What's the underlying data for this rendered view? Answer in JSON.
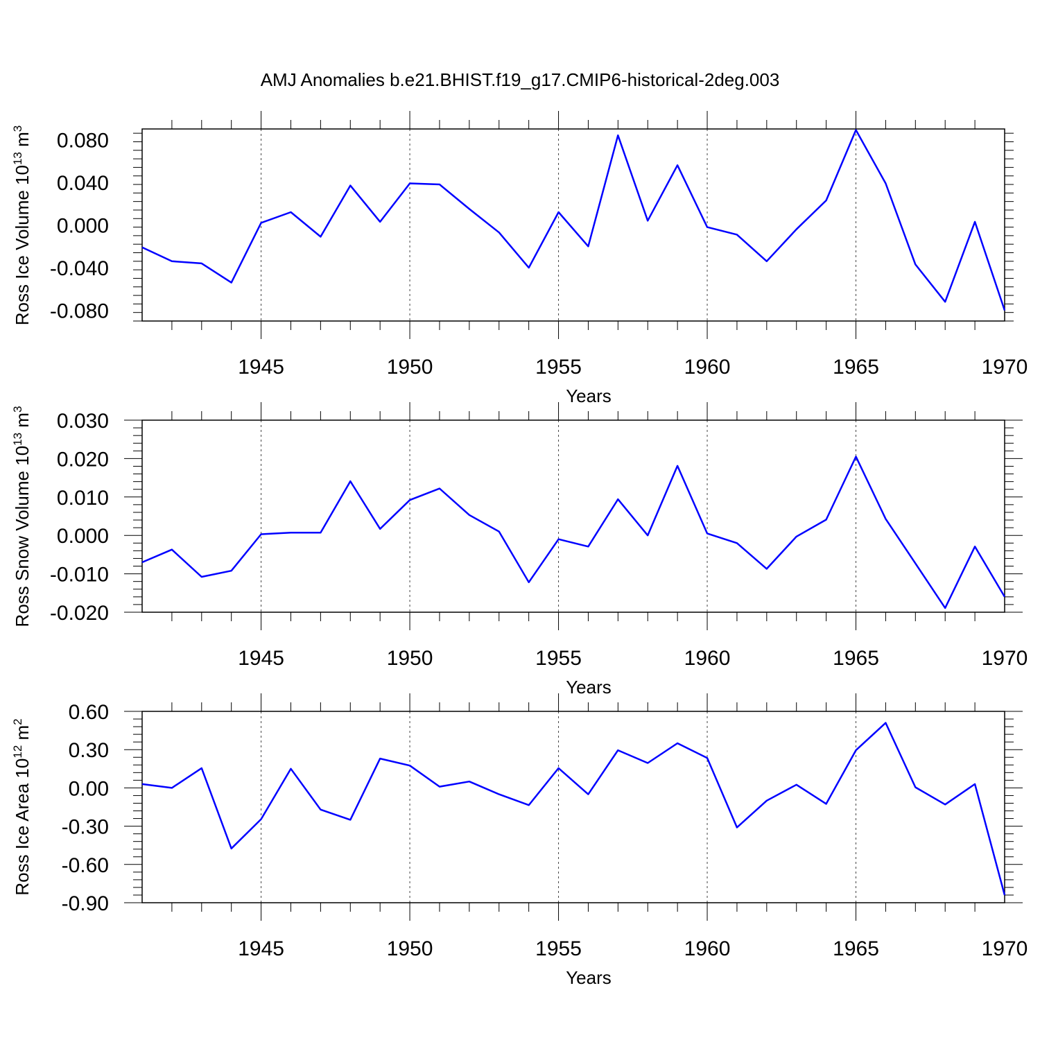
{
  "title": "AMJ Anomalies b.e21.BHIST.f19_g17.CMIP6-historical-2deg.003",
  "line_color": "#0000ff",
  "chart_data": [
    {
      "type": "line",
      "ylabel": "Ross Ice Volume 10",
      "ylabel_exp": "13",
      "ylabel_unit": " m",
      "ylabel_unit_exp": "3",
      "xlabel": "Years",
      "xlim": [
        1941,
        1970
      ],
      "ylim": [
        -0.09,
        0.09
      ],
      "yticks": [
        -0.08,
        -0.04,
        0.0,
        0.04,
        0.08
      ],
      "ytick_labels": [
        "-0.080",
        "-0.040",
        "0.000",
        "0.040",
        "0.080"
      ],
      "xticks": [
        1945,
        1950,
        1955,
        1960,
        1965,
        1970
      ],
      "xtick_labels": [
        "1945",
        "1950",
        "1955",
        "1960",
        "1965",
        "1970"
      ],
      "grid": "vertical dashed at labeled years",
      "x": [
        1941,
        1942,
        1943,
        1944,
        1945,
        1946,
        1947,
        1948,
        1949,
        1950,
        1951,
        1952,
        1953,
        1954,
        1955,
        1956,
        1957,
        1958,
        1959,
        1960,
        1961,
        1962,
        1963,
        1964,
        1965,
        1966,
        1967,
        1968,
        1969,
        1970
      ],
      "values": [
        -0.021,
        -0.034,
        -0.036,
        -0.054,
        0.002,
        0.012,
        -0.011,
        0.037,
        0.003,
        0.039,
        0.038,
        0.015,
        -0.007,
        -0.04,
        0.012,
        -0.02,
        0.084,
        0.004,
        0.056,
        -0.002,
        -0.009,
        -0.034,
        -0.004,
        0.023,
        0.089,
        0.039,
        -0.037,
        -0.072,
        0.003,
        -0.08
      ]
    },
    {
      "type": "line",
      "ylabel": "Ross Snow Volume 10",
      "ylabel_exp": "13",
      "ylabel_unit": " m",
      "ylabel_unit_exp": "3",
      "xlabel": "Years",
      "xlim": [
        1941,
        1970
      ],
      "ylim": [
        -0.02,
        0.03
      ],
      "yticks": [
        -0.02,
        -0.01,
        0.0,
        0.01,
        0.02,
        0.03
      ],
      "ytick_labels": [
        "-0.020",
        "-0.010",
        "0.000",
        "0.010",
        "0.020",
        "0.030"
      ],
      "xticks": [
        1945,
        1950,
        1955,
        1960,
        1965,
        1970
      ],
      "xtick_labels": [
        "1945",
        "1950",
        "1955",
        "1960",
        "1965",
        "1970"
      ],
      "grid": "vertical dashed at labeled years",
      "x": [
        1941,
        1942,
        1943,
        1944,
        1945,
        1946,
        1947,
        1948,
        1949,
        1950,
        1951,
        1952,
        1953,
        1954,
        1955,
        1956,
        1957,
        1958,
        1959,
        1960,
        1961,
        1962,
        1963,
        1964,
        1965,
        1966,
        1967,
        1968,
        1969,
        1970
      ],
      "values": [
        -0.007,
        -0.0037,
        -0.0108,
        -0.0092,
        0.0003,
        0.0007,
        0.0007,
        0.0141,
        0.0017,
        0.0092,
        0.0122,
        0.0053,
        0.001,
        -0.0122,
        -0.001,
        -0.0029,
        0.0094,
        0.0,
        0.0181,
        0.0005,
        -0.002,
        -0.0087,
        -0.0003,
        0.0041,
        0.0205,
        0.0043,
        -0.0073,
        -0.0189,
        -0.0029,
        -0.016
      ]
    },
    {
      "type": "line",
      "ylabel": "Ross Ice Area 10",
      "ylabel_exp": "12",
      "ylabel_unit": " m",
      "ylabel_unit_exp": "2",
      "xlabel": "Years",
      "xlim": [
        1941,
        1970
      ],
      "ylim": [
        -0.9,
        0.6
      ],
      "yticks": [
        -0.9,
        -0.6,
        -0.3,
        0.0,
        0.3,
        0.6
      ],
      "ytick_labels": [
        "-0.90",
        "-0.60",
        "-0.30",
        "0.00",
        "0.30",
        "0.60"
      ],
      "xticks": [
        1945,
        1950,
        1955,
        1960,
        1965,
        1970
      ],
      "xtick_labels": [
        "1945",
        "1950",
        "1955",
        "1960",
        "1965",
        "1970"
      ],
      "grid": "vertical dashed at labeled years",
      "x": [
        1941,
        1942,
        1943,
        1944,
        1945,
        1946,
        1947,
        1948,
        1949,
        1950,
        1951,
        1952,
        1953,
        1954,
        1955,
        1956,
        1957,
        1958,
        1959,
        1960,
        1961,
        1962,
        1963,
        1964,
        1965,
        1966,
        1967,
        1968,
        1969,
        1970
      ],
      "values": [
        0.03,
        0.0,
        0.155,
        -0.475,
        -0.245,
        0.15,
        -0.17,
        -0.25,
        0.23,
        0.175,
        0.01,
        0.05,
        -0.05,
        -0.135,
        0.155,
        -0.05,
        0.295,
        0.195,
        0.35,
        0.235,
        -0.31,
        -0.1,
        0.025,
        -0.125,
        0.295,
        0.51,
        0.005,
        -0.13,
        0.03,
        -0.84
      ]
    }
  ]
}
